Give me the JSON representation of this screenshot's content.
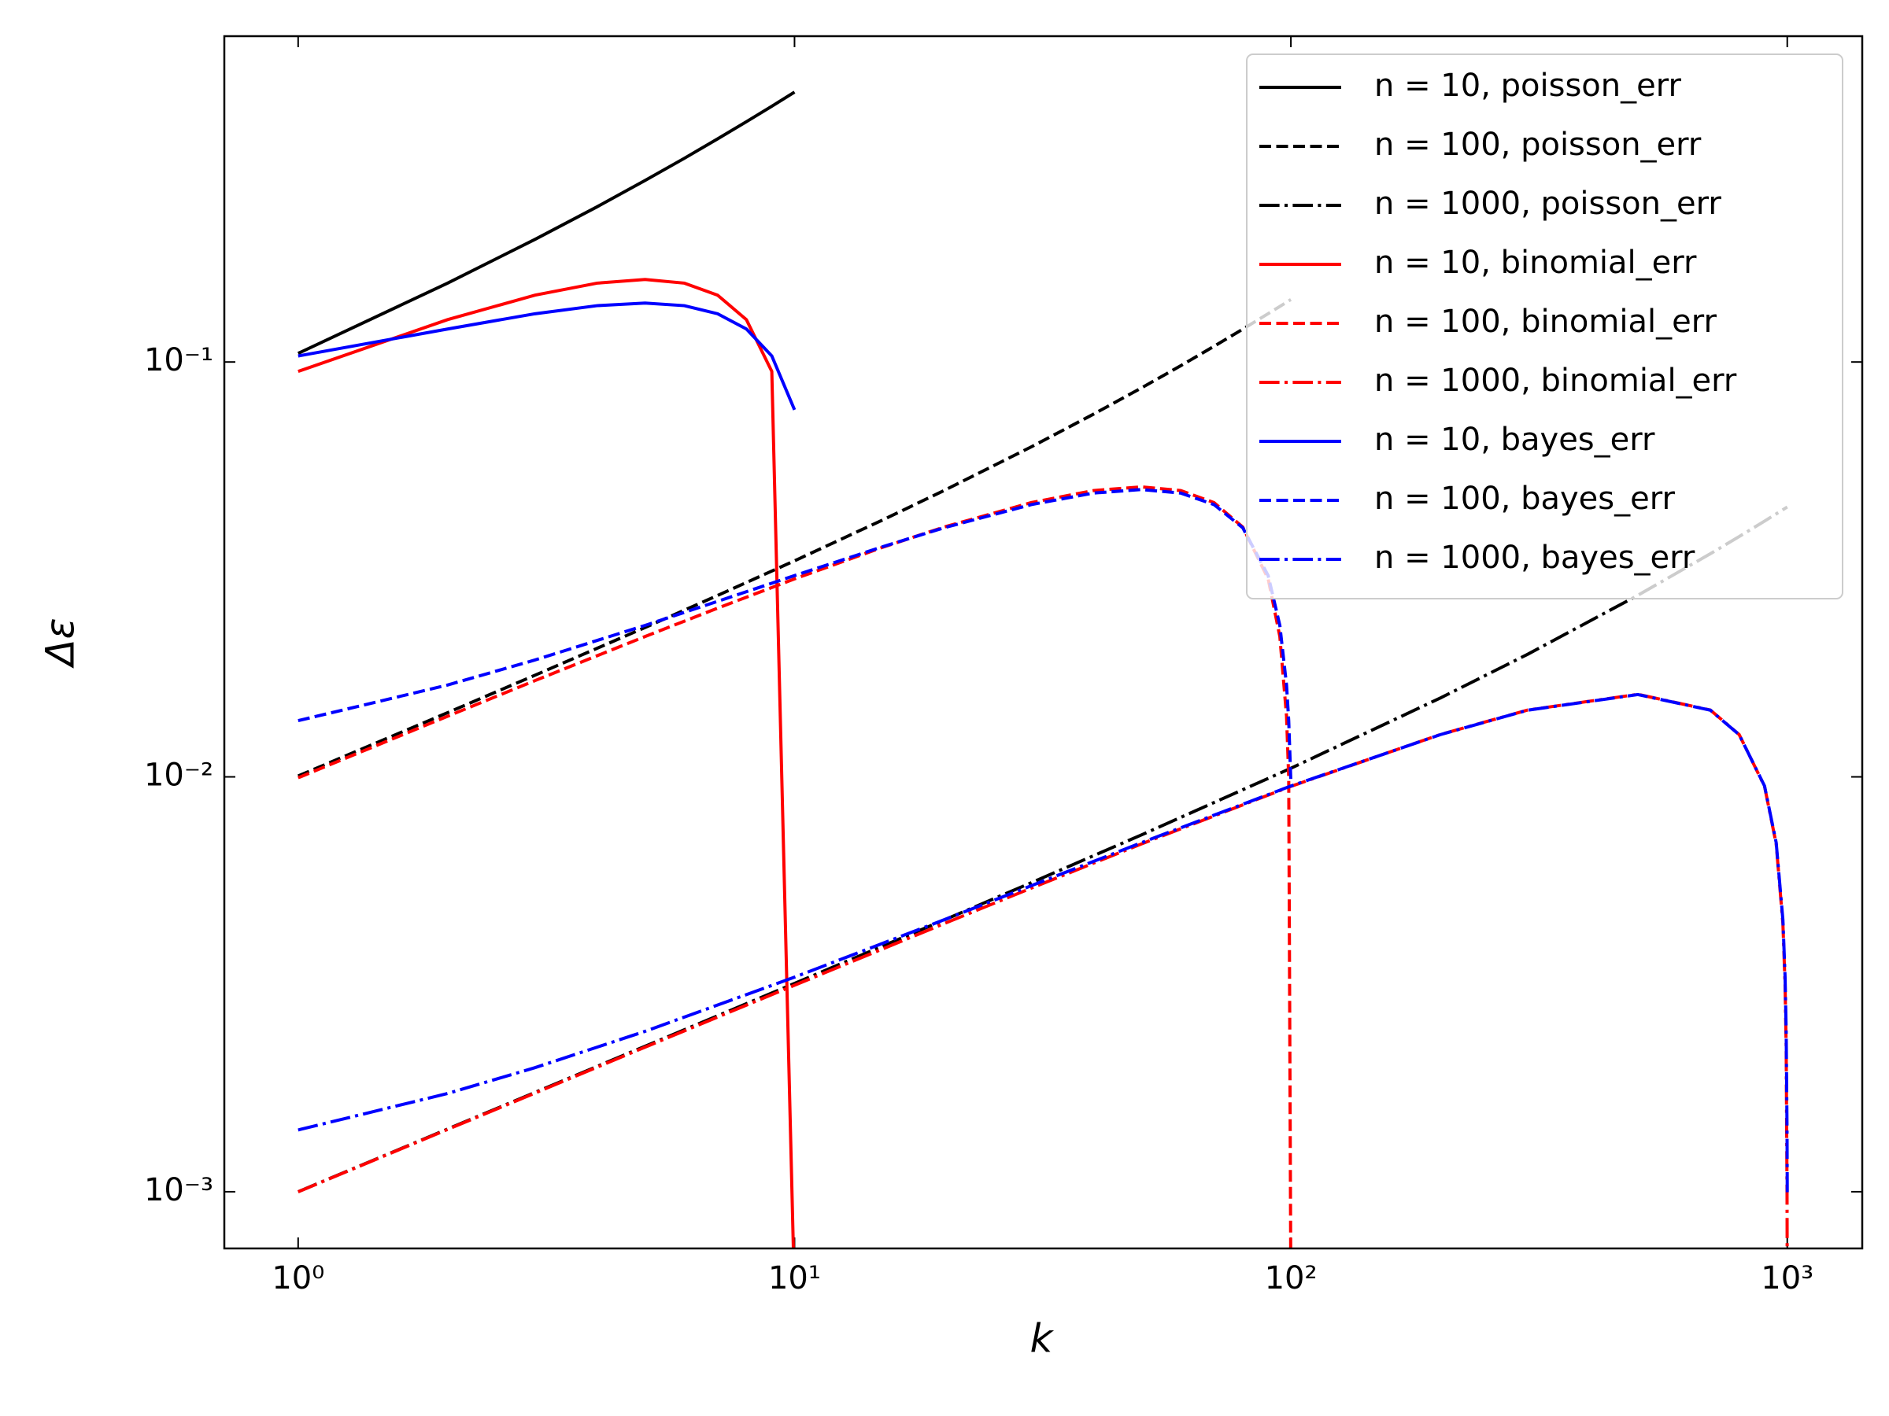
{
  "chart_data": {
    "type": "line",
    "xlabel": "k",
    "ylabel": "Δε",
    "xscale": "log",
    "yscale": "log",
    "xlim": [
      0.71,
      1416
    ],
    "ylim": [
      0.00073,
      0.61
    ],
    "xticks": [
      {
        "value": 1,
        "label": "10⁰"
      },
      {
        "value": 10,
        "label": "10¹"
      },
      {
        "value": 100,
        "label": "10²"
      },
      {
        "value": 1000,
        "label": "10³"
      }
    ],
    "yticks": [
      {
        "value": 0.001,
        "label": "10⁻³"
      },
      {
        "value": 0.01,
        "label": "10⁻²"
      },
      {
        "value": 0.1,
        "label": "10⁻¹"
      }
    ],
    "legend": "upper right",
    "series": [
      {
        "name": "n = 10, poisson_err",
        "color": "#000000",
        "dash": "solid",
        "x": [
          1,
          2,
          3,
          4,
          5,
          6,
          7,
          8,
          9,
          10
        ],
        "values": [
          0.1049,
          0.1549,
          0.1975,
          0.2366,
          0.2739,
          0.3098,
          0.345,
          0.3795,
          0.4135,
          0.4472
        ]
      },
      {
        "name": "n = 100, poisson_err",
        "color": "#000000",
        "dash": "dashed",
        "x": [
          1,
          2,
          3,
          5,
          7,
          10,
          15,
          20,
          30,
          40,
          50,
          60,
          70,
          80,
          90,
          95,
          98,
          99,
          100
        ],
        "values": [
          0.01005,
          0.01428,
          0.01758,
          0.02291,
          0.02737,
          0.03317,
          0.04153,
          0.04899,
          0.06245,
          0.07483,
          0.0866,
          0.09798,
          0.1091,
          0.12,
          0.1308,
          0.1361,
          0.1393,
          0.1404,
          0.1414
        ]
      },
      {
        "name": "n = 1000, poisson_err",
        "color": "#000000",
        "dash": "dashdot",
        "x": [
          1,
          2,
          3,
          5,
          10,
          20,
          30,
          50,
          100,
          200,
          300,
          500,
          700,
          800,
          900,
          950,
          980,
          990,
          995,
          999,
          1000
        ],
        "values": [
          0.001,
          0.001416,
          0.001735,
          0.002242,
          0.003178,
          0.004517,
          0.005559,
          0.007246,
          0.01049,
          0.01549,
          0.01975,
          0.02739,
          0.0345,
          0.03795,
          0.04135,
          0.04304,
          0.04405,
          0.04439,
          0.04455,
          0.04469,
          0.04472
        ]
      },
      {
        "name": "n = 10, binomial_err",
        "color": "#ff0000",
        "dash": "solid",
        "x": [
          1,
          2,
          3,
          4,
          5,
          6,
          7,
          8,
          9,
          10
        ],
        "values": [
          0.0949,
          0.1265,
          0.1449,
          0.1549,
          0.1581,
          0.1549,
          0.1449,
          0.1265,
          0.0949,
          0
        ]
      },
      {
        "name": "n = 100, binomial_err",
        "color": "#ff0000",
        "dash": "dashed",
        "x": [
          1,
          2,
          3,
          5,
          7,
          10,
          15,
          20,
          30,
          40,
          50,
          60,
          70,
          80,
          90,
          95,
          98,
          99,
          100
        ],
        "values": [
          0.00995,
          0.014,
          0.01706,
          0.02179,
          0.02551,
          0.03,
          0.03571,
          0.04,
          0.04583,
          0.04899,
          0.05,
          0.04899,
          0.04583,
          0.04,
          0.03,
          0.02179,
          0.014,
          0.00995,
          0
        ]
      },
      {
        "name": "n = 1000, binomial_err",
        "color": "#ff0000",
        "dash": "dashdot",
        "x": [
          1,
          2,
          3,
          5,
          10,
          20,
          30,
          50,
          100,
          200,
          300,
          500,
          700,
          800,
          900,
          950,
          980,
          990,
          995,
          999,
          1000
        ],
        "values": [
          0.0009995,
          0.001413,
          0.001729,
          0.002231,
          0.003146,
          0.004427,
          0.005394,
          0.006892,
          0.009487,
          0.01265,
          0.01449,
          0.01581,
          0.01449,
          0.01265,
          0.009487,
          0.006892,
          0.004427,
          0.003146,
          0.002231,
          0.0009995,
          0
        ]
      },
      {
        "name": "n = 10, bayes_err",
        "color": "#0000ff",
        "dash": "solid",
        "x": [
          1,
          2,
          3,
          4,
          5,
          6,
          7,
          8,
          9,
          10
        ],
        "values": [
          0.1034,
          0.1201,
          0.1307,
          0.1367,
          0.1387,
          0.1367,
          0.1307,
          0.1201,
          0.1034,
          0.0767
        ]
      },
      {
        "name": "n = 100, bayes_err",
        "color": "#0000ff",
        "dash": "dashed",
        "x": [
          1,
          2,
          3,
          5,
          7,
          10,
          15,
          20,
          30,
          40,
          50,
          60,
          70,
          80,
          90,
          95,
          98,
          99,
          100
        ],
        "values": [
          0.01366,
          0.01665,
          0.01913,
          0.02318,
          0.02649,
          0.03056,
          0.03583,
          0.03984,
          0.04532,
          0.04831,
          0.04927,
          0.04831,
          0.04532,
          0.03984,
          0.03056,
          0.02318,
          0.01665,
          0.01366,
          0.00971
        ]
      },
      {
        "name": "n = 1000, bayes_err",
        "color": "#0000ff",
        "dash": "dashdot",
        "x": [
          1,
          2,
          3,
          5,
          10,
          20,
          30,
          50,
          100,
          200,
          300,
          500,
          700,
          800,
          900,
          950,
          980,
          990,
          995,
          999,
          1000
        ],
        "values": [
          0.001409,
          0.001725,
          0.001991,
          0.002436,
          0.00329,
          0.004523,
          0.005467,
          0.00694,
          0.009506,
          0.01264,
          0.01448,
          0.01579,
          0.01448,
          0.01264,
          0.009506,
          0.00694,
          0.004523,
          0.00329,
          0.002436,
          0.001409,
          0.000997
        ]
      }
    ]
  }
}
